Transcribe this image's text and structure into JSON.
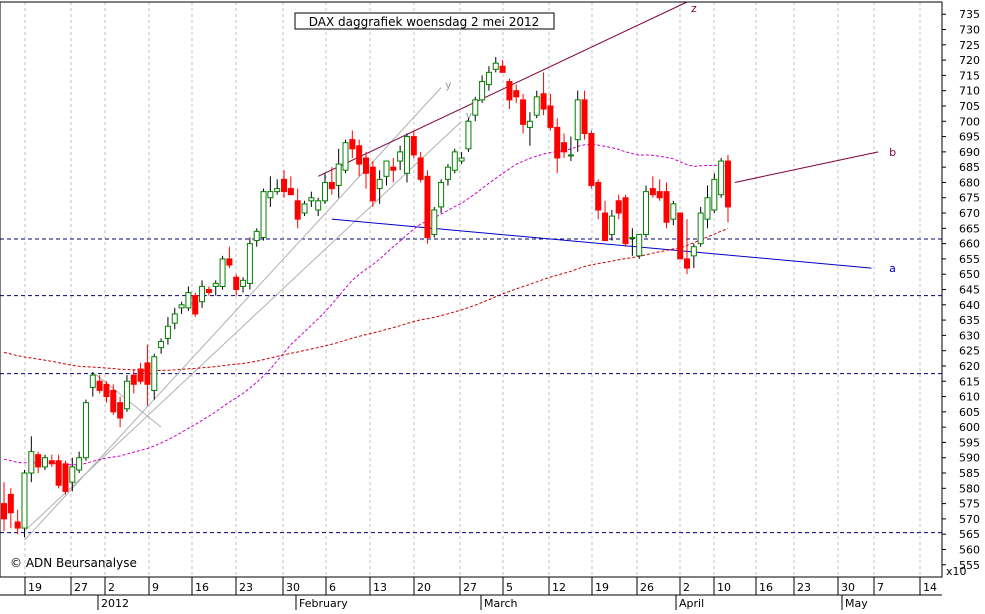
{
  "chart_data": {
    "type": "candlestick",
    "title": "DAX daggrafiek woensdag 2 mei 2012",
    "credit": "© ADN Beursanalyse",
    "scale_label": "x10",
    "ylim": [
      551,
      739
    ],
    "y_ticks": [
      555,
      560,
      565,
      570,
      575,
      580,
      585,
      590,
      595,
      600,
      605,
      610,
      615,
      620,
      625,
      630,
      635,
      640,
      645,
      650,
      655,
      660,
      665,
      670,
      675,
      680,
      685,
      690,
      695,
      700,
      705,
      710,
      715,
      720,
      725,
      730,
      735
    ],
    "x_tick_labels": [
      "19",
      "27",
      "2",
      "9",
      "16",
      "23",
      "30",
      "6",
      "13",
      "20",
      "27",
      "5",
      "12",
      "19",
      "26",
      "2",
      "10",
      "16",
      "23",
      "30",
      "7",
      "14"
    ],
    "month_labels": [
      "2012",
      "February",
      "March",
      "April",
      "May"
    ],
    "trend_labels": [
      "z",
      "y",
      "y",
      "b",
      "a"
    ],
    "horizontal_levels": [
      661.5,
      643,
      617.5,
      565.5
    ],
    "colors": {
      "up": "#008000",
      "down": "#ff0000",
      "ma_short": "#cc00cc",
      "ma_long": "#cc0000",
      "trend_upper": "#800040",
      "trend_a": "#0000cc",
      "channel": "#b0b0b0",
      "grid": "#c0c0c0"
    },
    "candles": [
      {
        "o": 575,
        "h": 582,
        "l": 566,
        "c": 570
      },
      {
        "o": 578,
        "h": 580,
        "l": 567,
        "c": 572
      },
      {
        "o": 569,
        "h": 573,
        "l": 565,
        "c": 567
      },
      {
        "o": 567,
        "h": 586,
        "l": 564,
        "c": 585
      },
      {
        "o": 585,
        "h": 597,
        "l": 582,
        "c": 592
      },
      {
        "o": 591,
        "h": 592,
        "l": 585,
        "c": 587
      },
      {
        "o": 587,
        "h": 591,
        "l": 586,
        "c": 590
      },
      {
        "o": 589,
        "h": 591,
        "l": 587,
        "c": 588
      },
      {
        "o": 589,
        "h": 591,
        "l": 580,
        "c": 581
      },
      {
        "o": 588,
        "h": 589,
        "l": 578,
        "c": 579
      },
      {
        "o": 582,
        "h": 590,
        "l": 579,
        "c": 587
      },
      {
        "o": 586,
        "h": 592,
        "l": 585,
        "c": 590
      },
      {
        "o": 590,
        "h": 609,
        "l": 589,
        "c": 608
      },
      {
        "o": 613,
        "h": 618,
        "l": 610,
        "c": 617
      },
      {
        "o": 615,
        "h": 617,
        "l": 611,
        "c": 612
      },
      {
        "o": 614,
        "h": 615,
        "l": 608,
        "c": 610
      },
      {
        "o": 612,
        "h": 614,
        "l": 604,
        "c": 605
      },
      {
        "o": 608,
        "h": 610,
        "l": 600,
        "c": 603
      },
      {
        "o": 606,
        "h": 617,
        "l": 605,
        "c": 615
      },
      {
        "o": 617,
        "h": 619,
        "l": 611,
        "c": 614
      },
      {
        "o": 619,
        "h": 621,
        "l": 614,
        "c": 615
      },
      {
        "o": 621,
        "h": 627,
        "l": 607,
        "c": 614
      },
      {
        "o": 612,
        "h": 624,
        "l": 609,
        "c": 623
      },
      {
        "o": 626,
        "h": 629,
        "l": 624,
        "c": 628
      },
      {
        "o": 629,
        "h": 636,
        "l": 627,
        "c": 633
      },
      {
        "o": 634,
        "h": 639,
        "l": 632,
        "c": 637
      },
      {
        "o": 639,
        "h": 641,
        "l": 637,
        "c": 640
      },
      {
        "o": 639,
        "h": 646,
        "l": 638,
        "c": 644
      },
      {
        "o": 643,
        "h": 644,
        "l": 636,
        "c": 637
      },
      {
        "o": 641,
        "h": 648,
        "l": 639,
        "c": 646
      },
      {
        "o": 645,
        "h": 646,
        "l": 643,
        "c": 644
      },
      {
        "o": 646,
        "h": 648,
        "l": 643,
        "c": 647
      },
      {
        "o": 646,
        "h": 656,
        "l": 645,
        "c": 655
      },
      {
        "o": 655,
        "h": 659,
        "l": 652,
        "c": 653
      },
      {
        "o": 649,
        "h": 650,
        "l": 643,
        "c": 645
      },
      {
        "o": 646,
        "h": 649,
        "l": 644,
        "c": 648
      },
      {
        "o": 647,
        "h": 662,
        "l": 645,
        "c": 660
      },
      {
        "o": 661,
        "h": 665,
        "l": 659,
        "c": 664
      },
      {
        "o": 662,
        "h": 678,
        "l": 661,
        "c": 677
      },
      {
        "o": 675,
        "h": 682,
        "l": 672,
        "c": 677
      },
      {
        "o": 677,
        "h": 681,
        "l": 676,
        "c": 678
      },
      {
        "o": 681,
        "h": 684,
        "l": 675,
        "c": 677
      },
      {
        "o": 678,
        "h": 682,
        "l": 676,
        "c": 676
      },
      {
        "o": 674,
        "h": 678,
        "l": 665,
        "c": 668
      },
      {
        "o": 670,
        "h": 674,
        "l": 669,
        "c": 673
      },
      {
        "o": 674,
        "h": 677,
        "l": 672,
        "c": 675
      },
      {
        "o": 671,
        "h": 675,
        "l": 669,
        "c": 674
      },
      {
        "o": 674,
        "h": 683,
        "l": 673,
        "c": 680
      },
      {
        "o": 680,
        "h": 685,
        "l": 676,
        "c": 678
      },
      {
        "o": 679,
        "h": 691,
        "l": 675,
        "c": 686
      },
      {
        "o": 684,
        "h": 694,
        "l": 683,
        "c": 693
      },
      {
        "o": 694,
        "h": 697,
        "l": 688,
        "c": 691
      },
      {
        "o": 692,
        "h": 694,
        "l": 682,
        "c": 686
      },
      {
        "o": 688,
        "h": 690,
        "l": 678,
        "c": 683
      },
      {
        "o": 685,
        "h": 687,
        "l": 672,
        "c": 674
      },
      {
        "o": 678,
        "h": 684,
        "l": 673,
        "c": 681
      },
      {
        "o": 682,
        "h": 686,
        "l": 679,
        "c": 687
      },
      {
        "o": 685,
        "h": 688,
        "l": 680,
        "c": 684
      },
      {
        "o": 687,
        "h": 692,
        "l": 684,
        "c": 690
      },
      {
        "o": 683,
        "h": 696,
        "l": 680,
        "c": 695
      },
      {
        "o": 695,
        "h": 697,
        "l": 688,
        "c": 689
      },
      {
        "o": 688,
        "h": 690,
        "l": 680,
        "c": 681
      },
      {
        "o": 682,
        "h": 684,
        "l": 660,
        "c": 662
      },
      {
        "o": 663,
        "h": 672,
        "l": 662,
        "c": 671
      },
      {
        "o": 672,
        "h": 681,
        "l": 670,
        "c": 680
      },
      {
        "o": 681,
        "h": 686,
        "l": 679,
        "c": 685
      },
      {
        "o": 684,
        "h": 691,
        "l": 683,
        "c": 690
      },
      {
        "o": 687,
        "h": 690,
        "l": 686,
        "c": 688
      },
      {
        "o": 691,
        "h": 701,
        "l": 690,
        "c": 700
      },
      {
        "o": 702,
        "h": 708,
        "l": 700,
        "c": 707
      },
      {
        "o": 707,
        "h": 715,
        "l": 706,
        "c": 713
      },
      {
        "o": 712,
        "h": 718,
        "l": 710,
        "c": 716
      },
      {
        "o": 717,
        "h": 721,
        "l": 716,
        "c": 719
      },
      {
        "o": 718,
        "h": 720,
        "l": 716,
        "c": 716
      },
      {
        "o": 713,
        "h": 714,
        "l": 704,
        "c": 707
      },
      {
        "o": 710,
        "h": 712,
        "l": 706,
        "c": 708
      },
      {
        "o": 707,
        "h": 709,
        "l": 696,
        "c": 699
      },
      {
        "o": 698,
        "h": 703,
        "l": 692,
        "c": 700
      },
      {
        "o": 702,
        "h": 710,
        "l": 701,
        "c": 708
      },
      {
        "o": 709,
        "h": 716,
        "l": 702,
        "c": 704
      },
      {
        "o": 705,
        "h": 709,
        "l": 697,
        "c": 698
      },
      {
        "o": 698,
        "h": 701,
        "l": 683,
        "c": 688
      },
      {
        "o": 693,
        "h": 696,
        "l": 688,
        "c": 690
      },
      {
        "o": 689,
        "h": 695,
        "l": 687,
        "c": 689
      },
      {
        "o": 694,
        "h": 710,
        "l": 690,
        "c": 707
      },
      {
        "o": 707,
        "h": 710,
        "l": 694,
        "c": 696
      },
      {
        "o": 696,
        "h": 697,
        "l": 678,
        "c": 679
      },
      {
        "o": 680,
        "h": 681,
        "l": 668,
        "c": 671
      },
      {
        "o": 670,
        "h": 674,
        "l": 661,
        "c": 661
      },
      {
        "o": 663,
        "h": 671,
        "l": 661,
        "c": 669
      },
      {
        "o": 674,
        "h": 676,
        "l": 668,
        "c": 670
      },
      {
        "o": 675,
        "h": 676,
        "l": 659,
        "c": 660
      },
      {
        "o": 662,
        "h": 665,
        "l": 656,
        "c": 662
      },
      {
        "o": 656,
        "h": 663,
        "l": 655,
        "c": 663
      },
      {
        "o": 663,
        "h": 679,
        "l": 662,
        "c": 677
      },
      {
        "o": 678,
        "h": 682,
        "l": 675,
        "c": 676
      },
      {
        "o": 677,
        "h": 681,
        "l": 674,
        "c": 675
      },
      {
        "o": 677,
        "h": 680,
        "l": 665,
        "c": 667
      },
      {
        "o": 668,
        "h": 674,
        "l": 666,
        "c": 673
      },
      {
        "o": 670,
        "h": 670,
        "l": 655,
        "c": 655
      },
      {
        "o": 655,
        "h": 668,
        "l": 650,
        "c": 652
      },
      {
        "o": 656,
        "h": 660,
        "l": 652,
        "c": 659
      },
      {
        "o": 660,
        "h": 672,
        "l": 659,
        "c": 670
      },
      {
        "o": 668,
        "h": 679,
        "l": 665,
        "c": 675
      },
      {
        "o": 671,
        "h": 683,
        "l": 670,
        "c": 681
      },
      {
        "o": 676,
        "h": 688,
        "l": 675,
        "c": 687
      },
      {
        "o": 687,
        "h": 689,
        "l": 667,
        "c": 672
      }
    ]
  }
}
